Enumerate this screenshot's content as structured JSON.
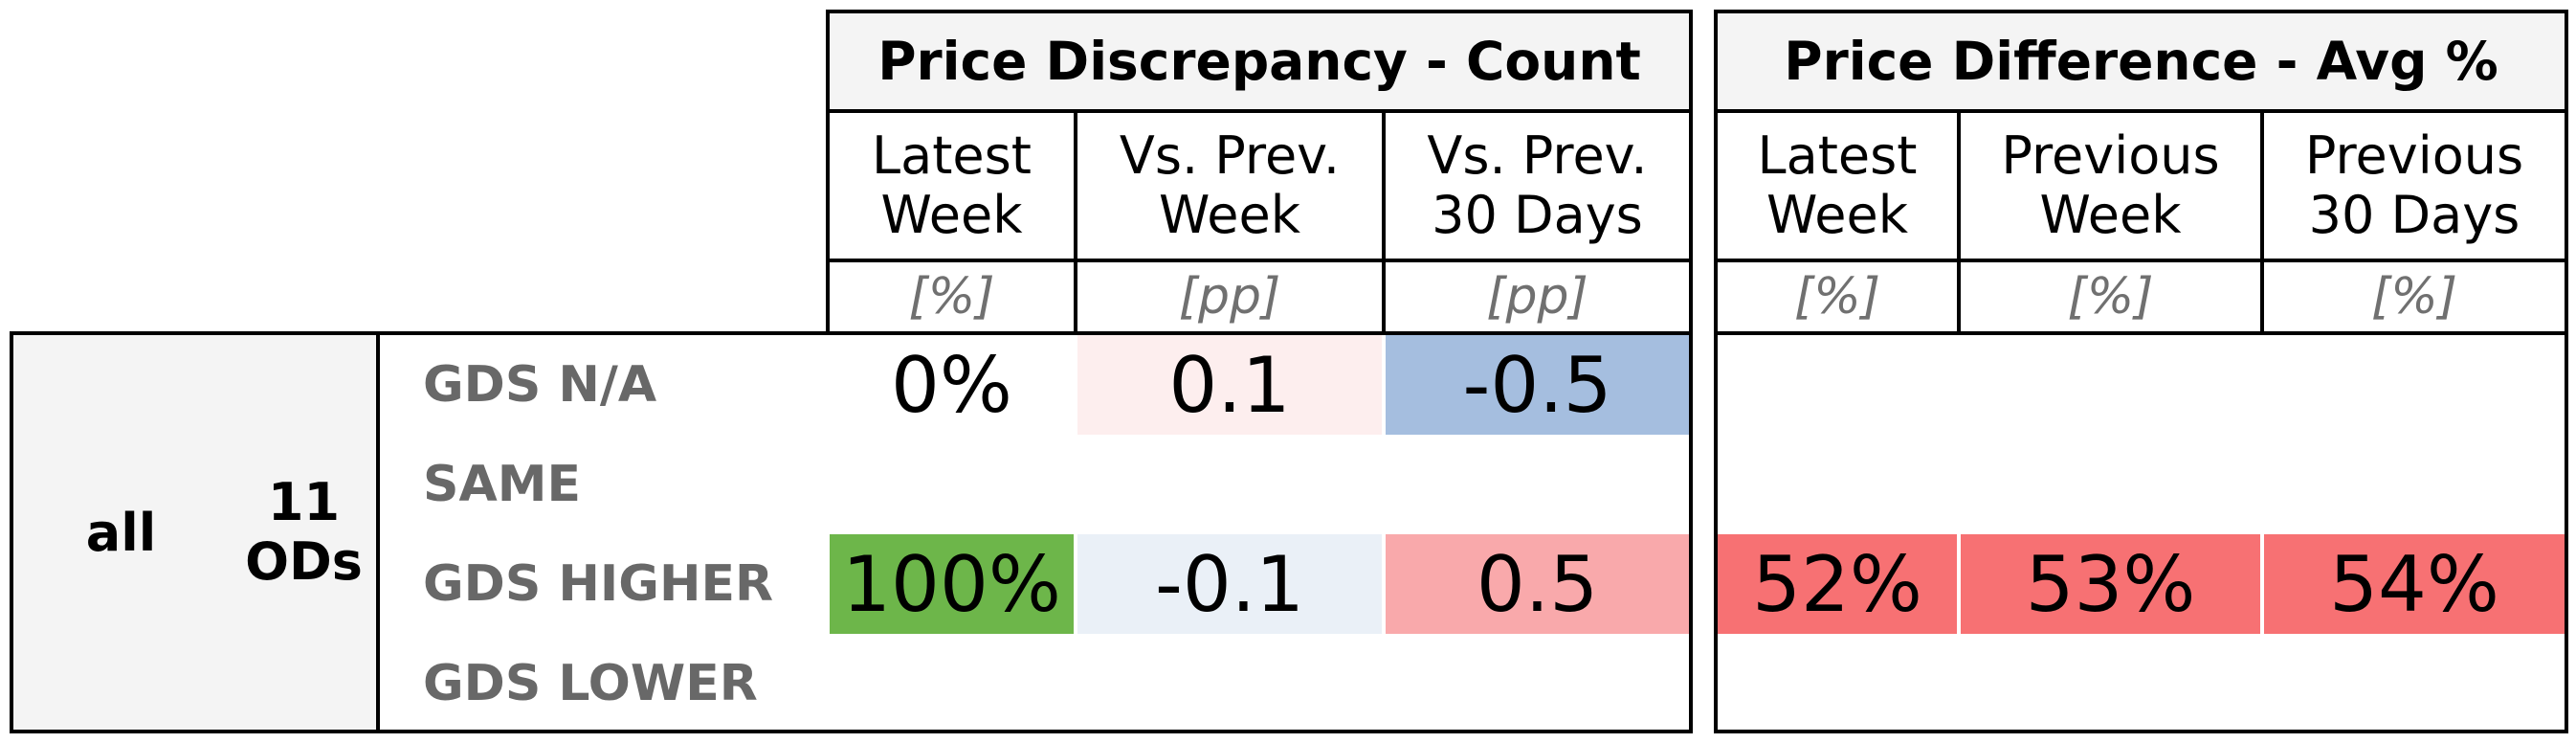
{
  "chart_data": {
    "type": "table",
    "groups": [
      {
        "title": "Price Discrepancy - Count",
        "columns": [
          {
            "label": "Latest\nWeek",
            "unit": "[%]"
          },
          {
            "label": "Vs. Prev.\nWeek",
            "unit": "[pp]"
          },
          {
            "label": "Vs. Prev.\n30 Days",
            "unit": "[pp]"
          }
        ]
      },
      {
        "title": "Price Difference - Avg %",
        "columns": [
          {
            "label": "Latest\nWeek",
            "unit": "[%]"
          },
          {
            "label": "Previous\nWeek",
            "unit": "[%]"
          },
          {
            "label": "Previous\n30 Days",
            "unit": "[%]"
          }
        ]
      }
    ],
    "segment": {
      "label": "all",
      "count_label": "11\nODs"
    },
    "rows": [
      {
        "label": "GDS N/A",
        "values": [
          "0%",
          "0.1",
          "-0.5",
          "",
          "",
          ""
        ]
      },
      {
        "label": "SAME",
        "values": [
          "",
          "",
          "",
          "",
          "",
          ""
        ]
      },
      {
        "label": "GDS HIGHER",
        "values": [
          "100%",
          "-0.1",
          "0.5",
          "52%",
          "53%",
          "54%"
        ]
      },
      {
        "label": "GDS LOWER",
        "values": [
          "",
          "",
          "",
          "",
          "",
          ""
        ]
      }
    ],
    "cell_colors": [
      [
        null,
        "#fdeeee",
        "#a5bedf",
        null,
        null,
        null
      ],
      [
        null,
        null,
        null,
        null,
        null,
        null
      ],
      [
        "#6db64a",
        "#eaf0f7",
        "#f9a9ab",
        "#f77173",
        "#f77173",
        "#f77173"
      ],
      [
        null,
        null,
        null,
        null,
        null,
        null
      ]
    ]
  }
}
